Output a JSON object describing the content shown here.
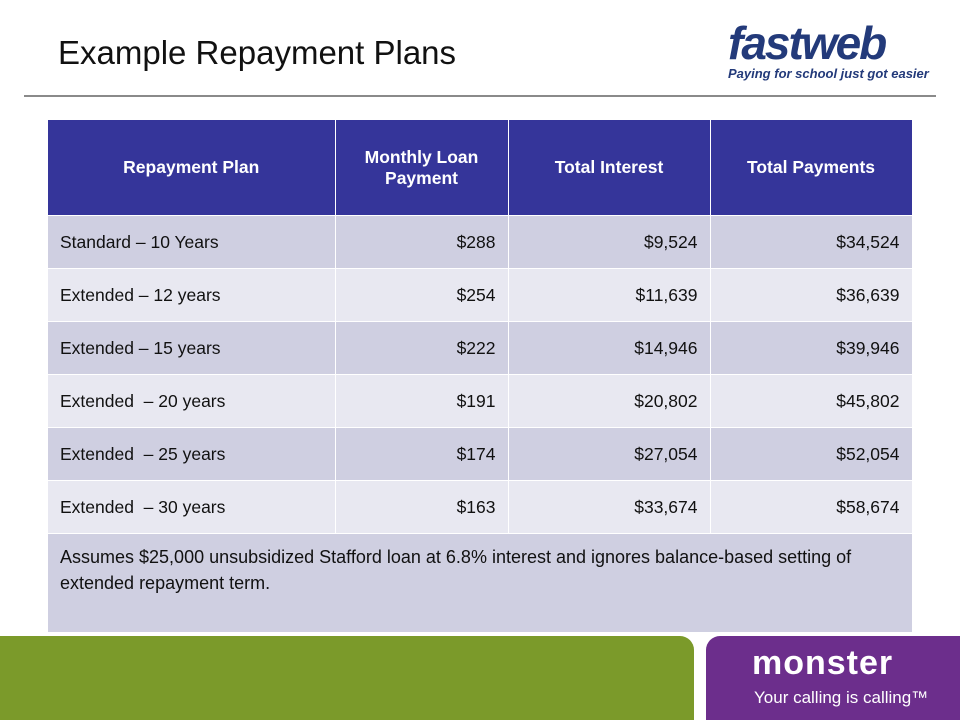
{
  "header": {
    "title": "Example Repayment Plans",
    "logo": "fastweb",
    "logo_tagline": "Paying for school just got easier"
  },
  "table": {
    "columns": [
      "Repayment Plan",
      "Monthly Loan Payment",
      "Total Interest",
      "Total Payments"
    ],
    "rows": [
      [
        "Standard – 10 Years",
        "$288",
        "$9,524",
        "$34,524"
      ],
      [
        "Extended – 12 years",
        "$254",
        "$11,639",
        "$36,639"
      ],
      [
        "Extended – 15 years",
        "$222",
        "$14,946",
        "$39,946"
      ],
      [
        "Extended  – 20 years",
        "$191",
        "$20,802",
        "$45,802"
      ],
      [
        "Extended  – 25 years",
        "$174",
        "$27,054",
        "$52,054"
      ],
      [
        "Extended  – 30 years",
        "$163",
        "$33,674",
        "$58,674"
      ]
    ],
    "note": "Assumes $25,000 unsubsidized Stafford loan at 6.8% interest and ignores balance-based setting of extended repayment term."
  },
  "footer": {
    "brand": "monster",
    "tagline": "Your calling is calling™"
  }
}
